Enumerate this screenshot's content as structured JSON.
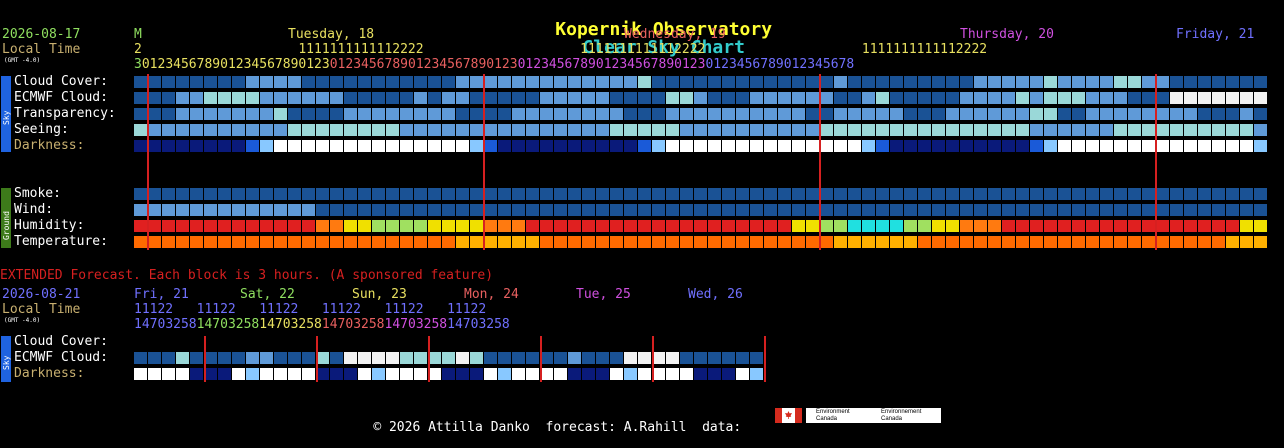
{
  "title": {
    "part1": "Kopernik Observatory",
    "part2": "Clear Sky Chart"
  },
  "main": {
    "date": "2026-08-17",
    "local_time": "Local Time",
    "gmt": "(GMT -4.0)",
    "days": [
      {
        "label": "M",
        "color": "#90e060"
      },
      {
        "label": "Tuesday, 18",
        "color": "#e8e060"
      },
      {
        "label": "Wednesday, 19",
        "color": "#e86060"
      },
      {
        "label": "Thursday, 20",
        "color": "#d050e0"
      },
      {
        "label": "Friday, 21",
        "color": "#7070ff"
      }
    ],
    "hours_tens": "2                    1111111111112222                    1111111111112222                    1111111111112222",
    "hours_units": "30123456789012345678901230123456789012345678901230123456789012345678901230123456789012345678",
    "sky_label": "Sky",
    "ground_label": "Ground",
    "rows": [
      {
        "label": "Cloud Cover:",
        "cells": "3333333322223333333333322222222222221333333333333323333333332222212222112233333333233333333333333333333333311111111"
      },
      {
        "label": "ECMWF Cloud:",
        "cells": "3332211112222223333323223333322222333311233322222233213333322221211122233300000000000000000000000000000003333333333"
      },
      {
        "label": "Transparency:",
        "cells": "3332222222133332222222233332222222233322222222223322222333222222113322222222333233332222222222223333222222222332333"
      },
      {
        "label": "Seeing:",
        "cells": "1222222222211111111222222222222222111112222222222111111111111111222222111111111122222111111111111111111111112222222"
      },
      {
        "label": "Darkness:",
        "cells": "ddddddddmlwwwwwwwwwwwwwwlmddddddddddmlwwwwwwwwwwwwwwlmddddddddddmlwwwwwwwwwwwwwwlmddddddddddmlwwwwwwwwwwwwwwlmdddd"
      }
    ],
    "ground_rows": [
      {
        "label": "Smoke:",
        "cells": "33333333333333333333333333333333333333333333333333333333333333333333333333333333333333333333333333333"
      },
      {
        "label": "Wind:",
        "cells": "22222222222223333333333333333333333333333333333333333333333333333333333333333333333333322222222222222222222222222222"
      },
      {
        "label": "Humidity:",
        "cells": "rrrrrrrrrrrrrooyyggggyyyyooorrrrrrrrrrrrrrrrrrryyggccccggyyooorrrrrrrrrrrrrrrrryyycyyyyyggcgyyyyyyooorrrrrrrrrrrrrr"
      },
      {
        "label": "Temperature:",
        "cells": "OOOOOOOOOOOOOOOOOOOOOOOYYYYYYOOOOOOOOOOOOOOOOOOOOOYYYYYYOOOOOOOOOOOOOOOOOOOOOOYYYYYYOOOOOOOOOOOOOOOOOOOOOOOOYYYYYOOO"
      }
    ]
  },
  "extended": {
    "heading": "EXTENDED Forecast. Each block is 3 hours. (A sponsored feature)",
    "date": "2026-08-21",
    "local_time": "Local Time",
    "gmt": "(GMT -4.0)",
    "days": [
      {
        "label": "Fri, 21",
        "color": "#7070ff"
      },
      {
        "label": "Sat, 22",
        "color": "#90e060"
      },
      {
        "label": "Sun, 23",
        "color": "#e8e060"
      },
      {
        "label": "Mon, 24",
        "color": "#e86060"
      },
      {
        "label": "Tue, 25",
        "color": "#d050e0"
      },
      {
        "label": "Wed, 26",
        "color": "#7070ff"
      }
    ],
    "hours_tens": "11122   11122   11122   11122   11122   11122",
    "hours_units": "147032581470325814703258147032581470325814703258",
    "rows": [
      {
        "label": "Cloud Cover:",
        "cells": "3331333322333130000111101333333233300003333330033113"
      },
      {
        "label": "ECMWF Cloud:",
        "cells": ""
      }
    ],
    "darkness_label": "Darkness:",
    "darkness_cells": "wwwwdddwlwwwwdddwlwwwwdddwlwwwwdddwlwwwwdddwlwwwwd"
  },
  "footer": {
    "copyright": "© 2026 Attilla Danko",
    "forecast": "forecast: A.Rahill",
    "data": "data:",
    "logo_text_1": "Environment\nCanada",
    "logo_text_2": "Environnement\nCanada"
  },
  "colors": {
    "bg": "#000000",
    "title1": "#ffff33",
    "title2": "#33cccc",
    "label": "#ffffff",
    "darkness_label": "#c8b070",
    "extended_heading": "#d62020",
    "midnight_line": "#d62020",
    "sky_side": "#1f63e0",
    "ground_side": "#3d7a1a"
  }
}
